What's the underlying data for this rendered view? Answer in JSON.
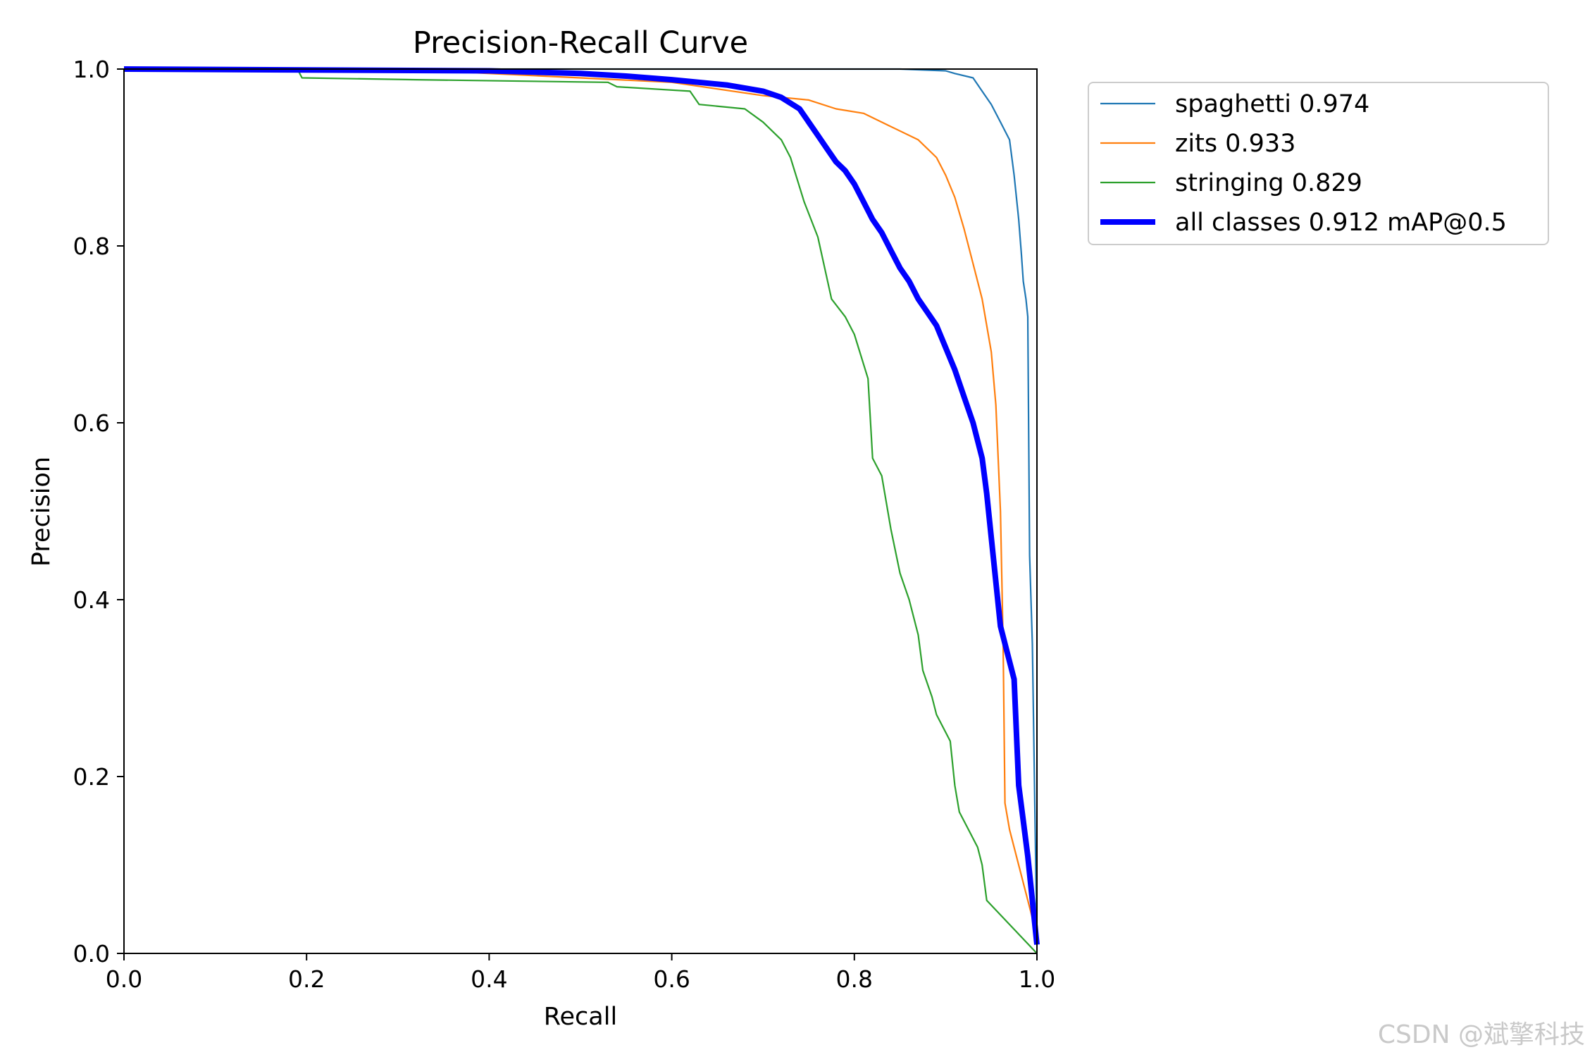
{
  "chart_data": {
    "type": "line",
    "title": "Precision-Recall Curve",
    "xlabel": "Recall",
    "ylabel": "Precision",
    "xlim": [
      0,
      1
    ],
    "ylim": [
      0,
      1
    ],
    "xticks": [
      "0.0",
      "0.2",
      "0.4",
      "0.6",
      "0.8",
      "1.0"
    ],
    "yticks": [
      "0.0",
      "0.2",
      "0.4",
      "0.6",
      "0.8",
      "1.0"
    ],
    "grid": false,
    "legend_position": "outside-right-top",
    "series": [
      {
        "name": "spaghetti 0.974",
        "color": "#1f77b4",
        "width": "thin",
        "points": [
          [
            0,
            1.0
          ],
          [
            0.85,
            1.0
          ],
          [
            0.9,
            0.998
          ],
          [
            0.91,
            0.995
          ],
          [
            0.93,
            0.99
          ],
          [
            0.94,
            0.975
          ],
          [
            0.95,
            0.96
          ],
          [
            0.96,
            0.94
          ],
          [
            0.97,
            0.92
          ],
          [
            0.975,
            0.88
          ],
          [
            0.98,
            0.83
          ],
          [
            0.983,
            0.79
          ],
          [
            0.985,
            0.76
          ],
          [
            0.988,
            0.74
          ],
          [
            0.99,
            0.72
          ],
          [
            0.992,
            0.45
          ],
          [
            0.995,
            0.35
          ],
          [
            1.0,
            0.01
          ]
        ]
      },
      {
        "name": "zits 0.933",
        "color": "#ff7f0e",
        "width": "thin",
        "points": [
          [
            0,
            1.0
          ],
          [
            0.3,
            1.0
          ],
          [
            0.6,
            0.985
          ],
          [
            0.7,
            0.97
          ],
          [
            0.75,
            0.965
          ],
          [
            0.78,
            0.955
          ],
          [
            0.81,
            0.95
          ],
          [
            0.84,
            0.935
          ],
          [
            0.87,
            0.92
          ],
          [
            0.89,
            0.9
          ],
          [
            0.9,
            0.88
          ],
          [
            0.91,
            0.855
          ],
          [
            0.92,
            0.82
          ],
          [
            0.93,
            0.78
          ],
          [
            0.94,
            0.74
          ],
          [
            0.95,
            0.68
          ],
          [
            0.955,
            0.62
          ],
          [
            0.96,
            0.5
          ],
          [
            0.963,
            0.35
          ],
          [
            0.965,
            0.17
          ],
          [
            0.97,
            0.14
          ],
          [
            1.0,
            0.02
          ]
        ]
      },
      {
        "name": "stringing 0.829",
        "color": "#2ca02c",
        "width": "thin",
        "points": [
          [
            0,
            1.0
          ],
          [
            0.19,
            1.0
          ],
          [
            0.195,
            0.99
          ],
          [
            0.32,
            0.988
          ],
          [
            0.53,
            0.985
          ],
          [
            0.54,
            0.98
          ],
          [
            0.62,
            0.975
          ],
          [
            0.63,
            0.96
          ],
          [
            0.68,
            0.955
          ],
          [
            0.7,
            0.94
          ],
          [
            0.72,
            0.92
          ],
          [
            0.73,
            0.9
          ],
          [
            0.745,
            0.85
          ],
          [
            0.76,
            0.81
          ],
          [
            0.775,
            0.74
          ],
          [
            0.79,
            0.72
          ],
          [
            0.8,
            0.7
          ],
          [
            0.815,
            0.65
          ],
          [
            0.82,
            0.56
          ],
          [
            0.83,
            0.54
          ],
          [
            0.84,
            0.48
          ],
          [
            0.85,
            0.43
          ],
          [
            0.86,
            0.4
          ],
          [
            0.87,
            0.36
          ],
          [
            0.875,
            0.32
          ],
          [
            0.885,
            0.29
          ],
          [
            0.89,
            0.27
          ],
          [
            0.905,
            0.24
          ],
          [
            0.91,
            0.19
          ],
          [
            0.915,
            0.16
          ],
          [
            0.925,
            0.14
          ],
          [
            0.935,
            0.12
          ],
          [
            0.94,
            0.1
          ],
          [
            0.945,
            0.06
          ],
          [
            1.0,
            0.0
          ]
        ]
      },
      {
        "name": "all classes 0.912 mAP@0.5",
        "color": "#0000ff",
        "width": "thick",
        "points": [
          [
            0,
            1.0
          ],
          [
            0.4,
            0.998
          ],
          [
            0.5,
            0.995
          ],
          [
            0.55,
            0.992
          ],
          [
            0.6,
            0.988
          ],
          [
            0.66,
            0.982
          ],
          [
            0.7,
            0.975
          ],
          [
            0.72,
            0.968
          ],
          [
            0.74,
            0.955
          ],
          [
            0.75,
            0.94
          ],
          [
            0.76,
            0.925
          ],
          [
            0.77,
            0.91
          ],
          [
            0.78,
            0.895
          ],
          [
            0.79,
            0.885
          ],
          [
            0.8,
            0.87
          ],
          [
            0.81,
            0.85
          ],
          [
            0.82,
            0.83
          ],
          [
            0.83,
            0.815
          ],
          [
            0.84,
            0.795
          ],
          [
            0.85,
            0.775
          ],
          [
            0.86,
            0.76
          ],
          [
            0.87,
            0.74
          ],
          [
            0.88,
            0.725
          ],
          [
            0.89,
            0.71
          ],
          [
            0.9,
            0.685
          ],
          [
            0.91,
            0.66
          ],
          [
            0.92,
            0.63
          ],
          [
            0.93,
            0.6
          ],
          [
            0.94,
            0.56
          ],
          [
            0.945,
            0.52
          ],
          [
            0.95,
            0.47
          ],
          [
            0.955,
            0.42
          ],
          [
            0.96,
            0.37
          ],
          [
            0.97,
            0.33
          ],
          [
            0.975,
            0.31
          ],
          [
            0.98,
            0.19
          ],
          [
            0.985,
            0.15
          ],
          [
            0.99,
            0.11
          ],
          [
            1.0,
            0.01
          ]
        ]
      }
    ]
  },
  "watermark": "CSDN @斌擎科技"
}
